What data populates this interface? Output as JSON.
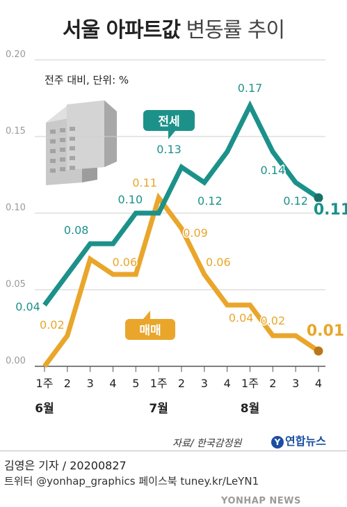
{
  "title": {
    "bold": "서울 아파트값",
    "light": "변동률 추이"
  },
  "unit_note": "전주 대비, 단위: %",
  "credit": "김영은 기자 / 20200827",
  "sns": "트위터 @yonhap_graphics  페이스북 tuney.kr/LeYN1",
  "source": "자료/ 한국감정원",
  "logo": "연합뉴스",
  "watermark": "YONHAP NEWS",
  "colors": {
    "jeonse": "#1c918a",
    "maemae": "#e9a62b",
    "grid": "#cfcfcf",
    "axis": "#555555"
  },
  "icon": "apartment-building-icon",
  "chart_data": {
    "type": "line",
    "x": [
      "1주",
      "2",
      "3",
      "4",
      "5",
      "1주",
      "2",
      "3",
      "4",
      "1주",
      "2",
      "3",
      "4"
    ],
    "months": [
      {
        "label": "6월",
        "start": 0
      },
      {
        "label": "7월",
        "start": 5
      },
      {
        "label": "8월",
        "start": 9
      }
    ],
    "ylim": [
      0,
      0.2
    ],
    "yticks": [
      "0.00",
      "0.05",
      "0.10",
      "0.15",
      "0.20"
    ],
    "grid": true,
    "series": [
      {
        "name": "전세",
        "values": [
          0.04,
          0.06,
          0.08,
          0.08,
          0.1,
          0.1,
          0.13,
          0.12,
          0.14,
          0.17,
          0.14,
          0.12,
          0.11
        ],
        "labels": [
          "0.04",
          null,
          "0.08",
          null,
          "0.10",
          null,
          "0.13",
          "0.12",
          null,
          "0.17",
          "0.14",
          "0.12",
          "0.11"
        ]
      },
      {
        "name": "매매",
        "values": [
          0.0,
          0.02,
          0.07,
          0.06,
          0.06,
          0.11,
          0.09,
          0.06,
          0.04,
          0.04,
          0.02,
          0.02,
          0.01
        ],
        "labels": [
          null,
          "0.02",
          null,
          null,
          "0.06",
          "0.11",
          "0.09",
          "0.06",
          "0.04",
          null,
          "0.02",
          null,
          "0.01"
        ]
      }
    ]
  }
}
